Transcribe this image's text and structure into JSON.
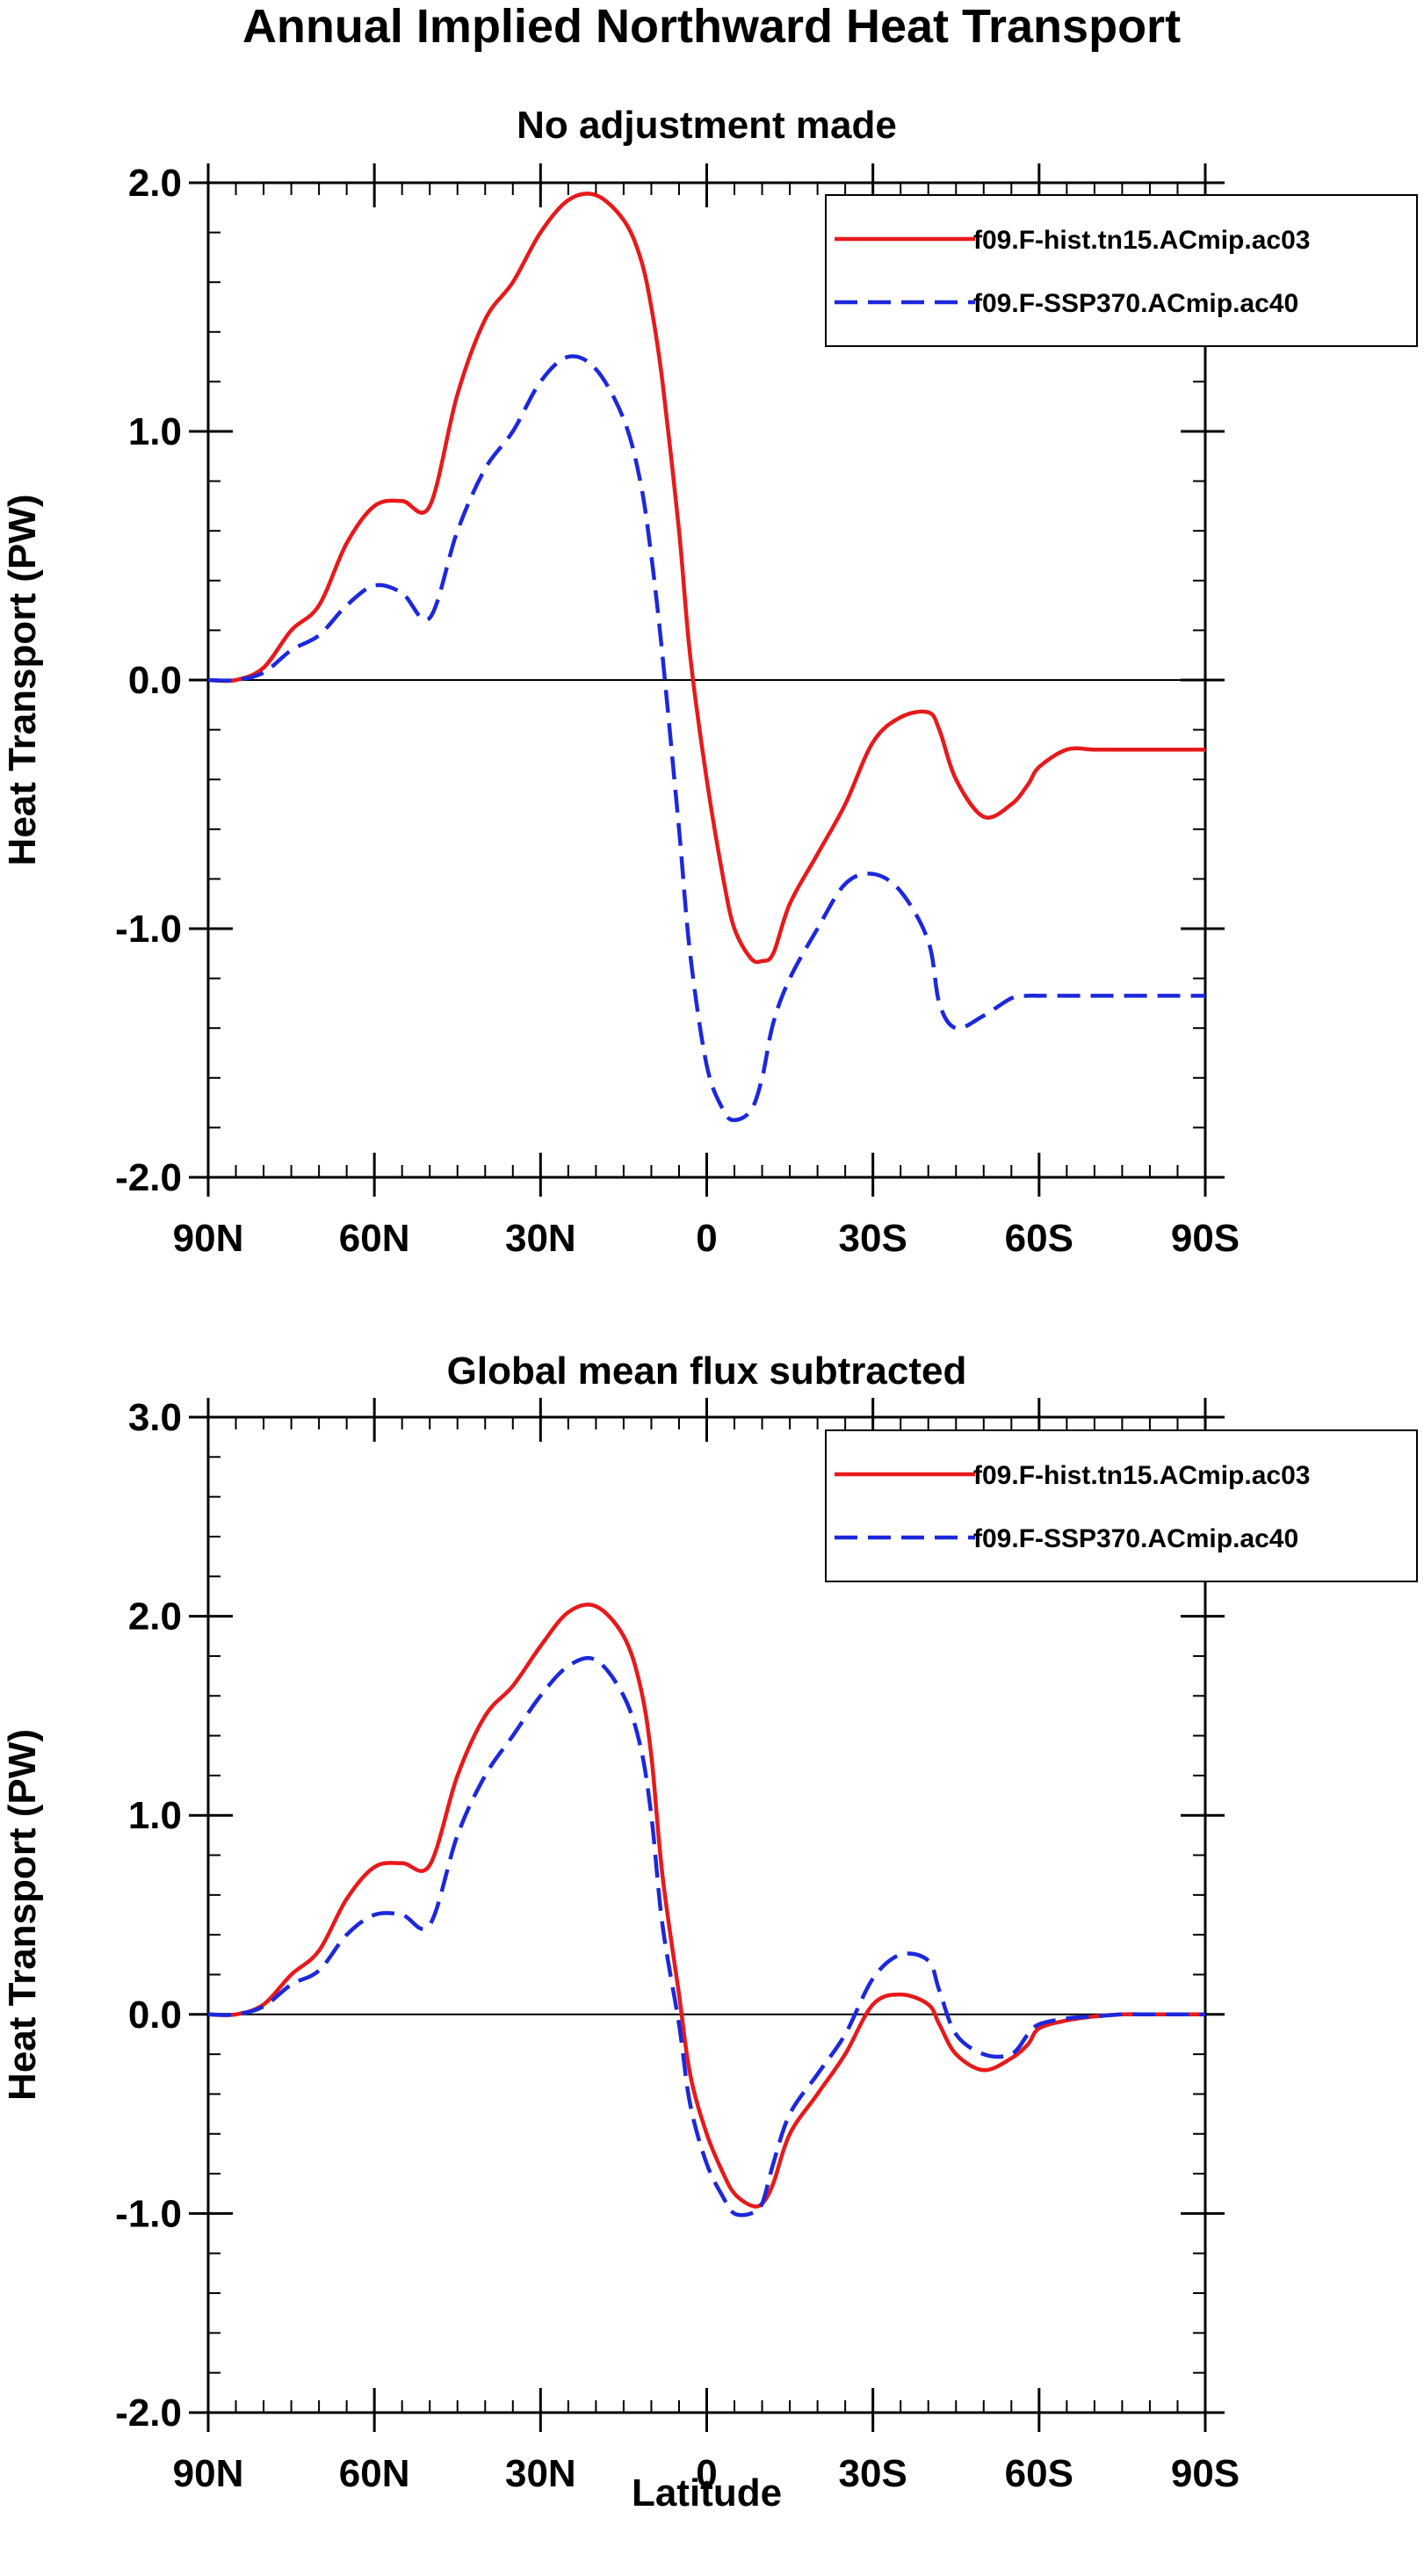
{
  "figure_title": "Annual Implied Northward Heat Transport",
  "chart_data": [
    {
      "type": "line",
      "title": "No adjustment made",
      "xlabel": "",
      "ylabel": "Heat Transport (PW)",
      "xlim": [
        -90,
        90
      ],
      "ylim": [
        -2.0,
        2.0
      ],
      "x_ticks": [
        -90,
        -60,
        -30,
        0,
        30,
        60,
        90
      ],
      "x_tick_labels": [
        "90N",
        "60N",
        "30N",
        "0",
        "30S",
        "60S",
        "90S"
      ],
      "y_ticks": [
        2.0,
        1.0,
        0.0,
        -1.0,
        -2.0
      ],
      "y_tick_labels": [
        "2.0",
        "1.0",
        "0.0",
        "-1.0",
        "-2.0"
      ],
      "y_minor_step": 0.2,
      "zero_line": true,
      "legend_position": "top-right",
      "series": [
        {
          "name": "f09.F-hist.tn15.ACmip.ac03",
          "color": "#e8191b",
          "dash": "solid",
          "x": [
            -90,
            -85,
            -80,
            -75,
            -70,
            -65,
            -60,
            -55,
            -50,
            -45,
            -40,
            -35,
            -30,
            -25,
            -20,
            -15,
            -12,
            -10,
            -8,
            -5,
            -3,
            0,
            3,
            5,
            8,
            10,
            12,
            15,
            20,
            25,
            30,
            35,
            40,
            42,
            45,
            50,
            55,
            58,
            60,
            65,
            70,
            75,
            80,
            85,
            90
          ],
          "y": [
            0,
            0,
            0.05,
            0.2,
            0.3,
            0.55,
            0.7,
            0.72,
            0.7,
            1.15,
            1.45,
            1.6,
            1.8,
            1.93,
            1.95,
            1.85,
            1.7,
            1.5,
            1.2,
            0.6,
            0.1,
            -0.4,
            -0.8,
            -1.0,
            -1.12,
            -1.13,
            -1.1,
            -0.9,
            -0.7,
            -0.5,
            -0.25,
            -0.15,
            -0.13,
            -0.2,
            -0.4,
            -0.55,
            -0.5,
            -0.42,
            -0.35,
            -0.28,
            -0.28,
            -0.28,
            -0.28,
            -0.28,
            -0.28
          ]
        },
        {
          "name": "f09.F-SSP370.ACmip.ac40",
          "color": "#1c28dc",
          "dash": "dashed",
          "x": [
            -90,
            -85,
            -80,
            -75,
            -70,
            -65,
            -60,
            -55,
            -50,
            -45,
            -40,
            -35,
            -30,
            -25,
            -20,
            -15,
            -12,
            -10,
            -8,
            -5,
            -3,
            0,
            3,
            5,
            8,
            10,
            12,
            15,
            20,
            25,
            30,
            35,
            40,
            42,
            45,
            50,
            55,
            58,
            60,
            65,
            70,
            75,
            80,
            85,
            90
          ],
          "y": [
            0,
            0,
            0.03,
            0.12,
            0.18,
            0.3,
            0.38,
            0.35,
            0.25,
            0.6,
            0.85,
            1.0,
            1.2,
            1.3,
            1.25,
            1.05,
            0.8,
            0.5,
            0.1,
            -0.6,
            -1.1,
            -1.55,
            -1.73,
            -1.77,
            -1.73,
            -1.6,
            -1.38,
            -1.2,
            -1.0,
            -0.82,
            -0.78,
            -0.85,
            -1.05,
            -1.3,
            -1.4,
            -1.35,
            -1.28,
            -1.27,
            -1.27,
            -1.27,
            -1.27,
            -1.27,
            -1.27,
            -1.27,
            -1.27
          ]
        }
      ]
    },
    {
      "type": "line",
      "title": "Global mean flux subtracted",
      "xlabel": "Latitude",
      "ylabel": "Heat Transport (PW)",
      "xlim": [
        -90,
        90
      ],
      "ylim": [
        -2.0,
        3.0
      ],
      "x_ticks": [
        -90,
        -60,
        -30,
        0,
        30,
        60,
        90
      ],
      "x_tick_labels": [
        "90N",
        "60N",
        "30N",
        "0",
        "30S",
        "60S",
        "90S"
      ],
      "y_ticks": [
        3.0,
        2.0,
        1.0,
        0.0,
        -1.0,
        -2.0
      ],
      "y_tick_labels": [
        "3.0",
        "2.0",
        "1.0",
        "0.0",
        "-1.0",
        "-2.0"
      ],
      "y_minor_step": 0.2,
      "zero_line": true,
      "legend_position": "top-right",
      "series": [
        {
          "name": "f09.F-hist.tn15.ACmip.ac03",
          "color": "#e8191b",
          "dash": "solid",
          "x": [
            -90,
            -85,
            -80,
            -75,
            -70,
            -65,
            -60,
            -55,
            -50,
            -45,
            -40,
            -35,
            -30,
            -25,
            -20,
            -15,
            -12,
            -10,
            -8,
            -5,
            -3,
            0,
            3,
            5,
            8,
            10,
            12,
            15,
            20,
            25,
            30,
            35,
            40,
            42,
            45,
            50,
            55,
            58,
            60,
            65,
            70,
            75,
            80,
            85,
            90
          ],
          "y": [
            0,
            0,
            0.05,
            0.2,
            0.32,
            0.58,
            0.74,
            0.76,
            0.75,
            1.2,
            1.5,
            1.65,
            1.85,
            2.02,
            2.05,
            1.9,
            1.65,
            1.3,
            0.7,
            0.1,
            -0.3,
            -0.6,
            -0.8,
            -0.9,
            -0.96,
            -0.95,
            -0.85,
            -0.6,
            -0.4,
            -0.2,
            0.05,
            0.1,
            0.05,
            -0.05,
            -0.2,
            -0.28,
            -0.22,
            -0.15,
            -0.07,
            -0.03,
            -0.01,
            0,
            0,
            0,
            0
          ]
        },
        {
          "name": "f09.F-SSP370.ACmip.ac40",
          "color": "#1c28dc",
          "dash": "dashed",
          "x": [
            -90,
            -85,
            -80,
            -75,
            -70,
            -65,
            -60,
            -55,
            -50,
            -45,
            -40,
            -35,
            -30,
            -25,
            -20,
            -15,
            -12,
            -10,
            -8,
            -5,
            -3,
            0,
            3,
            5,
            8,
            10,
            12,
            15,
            20,
            25,
            30,
            35,
            40,
            42,
            45,
            50,
            55,
            58,
            60,
            65,
            70,
            75,
            80,
            85,
            90
          ],
          "y": [
            0,
            0,
            0.04,
            0.15,
            0.22,
            0.4,
            0.5,
            0.5,
            0.45,
            0.9,
            1.2,
            1.4,
            1.6,
            1.75,
            1.78,
            1.6,
            1.35,
            1.0,
            0.45,
            -0.05,
            -0.45,
            -0.75,
            -0.92,
            -1.0,
            -1.0,
            -0.95,
            -0.75,
            -0.5,
            -0.3,
            -0.1,
            0.18,
            0.3,
            0.27,
            0.12,
            -0.1,
            -0.2,
            -0.2,
            -0.1,
            -0.05,
            -0.02,
            -0.01,
            0,
            0,
            0,
            0
          ]
        }
      ]
    }
  ]
}
